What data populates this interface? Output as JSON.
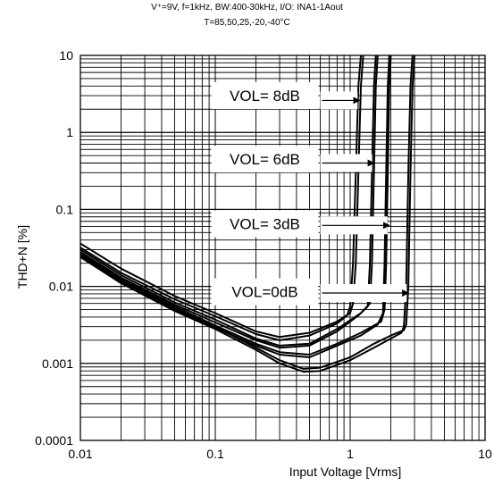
{
  "header": {
    "line1": "V⁺=9V, f=1kHz, BW:400-30kHz, I/O: INA1-1Aout",
    "line2": "T=85,50,25,-20,-40°C"
  },
  "chart_data": {
    "type": "line",
    "title": "V⁺=9V, f=1kHz, BW:400-30kHz, I/O: INA1-1Aout",
    "subtitle": "T=85,50,25,-20,-40°C",
    "xlabel": "Input Voltage [Vrms]",
    "ylabel": "THD+N [%]",
    "xscale": "log",
    "yscale": "log",
    "xlim": [
      0.01,
      10
    ],
    "ylim": [
      0.0001,
      10
    ],
    "grid": true,
    "x_tick_labels": [
      "0.01",
      "0.1",
      "1",
      "10"
    ],
    "y_tick_labels": [
      "0.0001",
      "0.001",
      "0.01",
      "0.1",
      "1",
      "10"
    ],
    "series": [
      {
        "group": 0,
        "values": [
          [
            0.01,
            0.036
          ],
          [
            0.02,
            0.017
          ],
          [
            0.05,
            0.0075
          ],
          [
            0.1,
            0.0045
          ],
          [
            0.2,
            0.0026
          ],
          [
            0.3,
            0.0022
          ],
          [
            0.5,
            0.0025
          ],
          [
            0.8,
            0.0035
          ],
          [
            1.0,
            0.0045
          ],
          [
            1.05,
            0.006
          ],
          [
            1.1,
            0.02
          ],
          [
            1.15,
            0.3
          ],
          [
            1.2,
            4.0
          ],
          [
            1.25,
            10.0
          ]
        ]
      },
      {
        "group": 0,
        "values": [
          [
            0.01,
            0.032
          ],
          [
            0.02,
            0.015
          ],
          [
            0.05,
            0.0068
          ],
          [
            0.1,
            0.0041
          ],
          [
            0.2,
            0.0024
          ],
          [
            0.3,
            0.002
          ],
          [
            0.5,
            0.0023
          ],
          [
            0.8,
            0.0033
          ],
          [
            0.95,
            0.0042
          ],
          [
            1.0,
            0.0055
          ],
          [
            1.05,
            0.02
          ],
          [
            1.1,
            0.3
          ],
          [
            1.15,
            4.0
          ],
          [
            1.2,
            10.0
          ]
        ]
      },
      {
        "group": 1,
        "values": [
          [
            0.01,
            0.03
          ],
          [
            0.02,
            0.014
          ],
          [
            0.05,
            0.0062
          ],
          [
            0.1,
            0.0037
          ],
          [
            0.2,
            0.0021
          ],
          [
            0.3,
            0.0017
          ],
          [
            0.5,
            0.0018
          ],
          [
            0.8,
            0.0028
          ],
          [
            1.2,
            0.0045
          ],
          [
            1.4,
            0.006
          ],
          [
            1.45,
            0.02
          ],
          [
            1.5,
            0.3
          ],
          [
            1.55,
            4.0
          ],
          [
            1.6,
            10.0
          ]
        ]
      },
      {
        "group": 1,
        "values": [
          [
            0.01,
            0.028
          ],
          [
            0.02,
            0.013
          ],
          [
            0.05,
            0.0058
          ],
          [
            0.1,
            0.0034
          ],
          [
            0.2,
            0.002
          ],
          [
            0.3,
            0.0016
          ],
          [
            0.5,
            0.0017
          ],
          [
            0.8,
            0.0026
          ],
          [
            1.15,
            0.0042
          ],
          [
            1.35,
            0.0055
          ],
          [
            1.4,
            0.02
          ],
          [
            1.45,
            0.3
          ],
          [
            1.5,
            4.0
          ],
          [
            1.55,
            10.0
          ]
        ]
      },
      {
        "group": 2,
        "values": [
          [
            0.01,
            0.027
          ],
          [
            0.02,
            0.0125
          ],
          [
            0.05,
            0.0055
          ],
          [
            0.1,
            0.0031
          ],
          [
            0.2,
            0.0018
          ],
          [
            0.3,
            0.0014
          ],
          [
            0.5,
            0.0013
          ],
          [
            0.8,
            0.0018
          ],
          [
            1.2,
            0.0025
          ],
          [
            1.7,
            0.0035
          ],
          [
            1.8,
            0.005
          ],
          [
            1.85,
            0.02
          ],
          [
            1.9,
            0.3
          ],
          [
            1.95,
            4.0
          ],
          [
            2.0,
            10.0
          ]
        ]
      },
      {
        "group": 2,
        "values": [
          [
            0.01,
            0.025
          ],
          [
            0.02,
            0.0115
          ],
          [
            0.05,
            0.005
          ],
          [
            0.1,
            0.0029
          ],
          [
            0.2,
            0.0017
          ],
          [
            0.3,
            0.0013
          ],
          [
            0.5,
            0.0012
          ],
          [
            0.8,
            0.0017
          ],
          [
            1.2,
            0.0023
          ],
          [
            1.6,
            0.0032
          ],
          [
            1.75,
            0.0045
          ],
          [
            1.8,
            0.02
          ],
          [
            1.85,
            0.3
          ],
          [
            1.9,
            4.0
          ],
          [
            1.95,
            10.0
          ]
        ]
      },
      {
        "group": 3,
        "values": [
          [
            0.01,
            0.026
          ],
          [
            0.02,
            0.012
          ],
          [
            0.05,
            0.0052
          ],
          [
            0.1,
            0.003
          ],
          [
            0.2,
            0.0016
          ],
          [
            0.3,
            0.0011
          ],
          [
            0.45,
            0.00085
          ],
          [
            0.6,
            0.00088
          ],
          [
            1.0,
            0.0012
          ],
          [
            1.5,
            0.0018
          ],
          [
            2.0,
            0.0023
          ],
          [
            2.5,
            0.0027
          ],
          [
            2.6,
            0.0032
          ],
          [
            2.7,
            0.01
          ],
          [
            2.8,
            0.3
          ],
          [
            2.9,
            4.0
          ],
          [
            3.0,
            10.0
          ]
        ]
      },
      {
        "group": 3,
        "values": [
          [
            0.01,
            0.024
          ],
          [
            0.02,
            0.011
          ],
          [
            0.05,
            0.0048
          ],
          [
            0.1,
            0.0028
          ],
          [
            0.2,
            0.0015
          ],
          [
            0.3,
            0.001
          ],
          [
            0.45,
            0.00078
          ],
          [
            0.6,
            0.0008
          ],
          [
            1.0,
            0.0011
          ],
          [
            1.5,
            0.0016
          ],
          [
            2.0,
            0.0021
          ],
          [
            2.4,
            0.0025
          ],
          [
            2.5,
            0.003
          ],
          [
            2.6,
            0.01
          ],
          [
            2.7,
            0.3
          ],
          [
            2.8,
            4.0
          ],
          [
            2.9,
            10.0
          ]
        ]
      }
    ],
    "annotations": [
      {
        "text": "VOL= 8dB",
        "box_center": [
          0.2,
          3.0
        ],
        "arrow_to": [
          1.17,
          2.6
        ]
      },
      {
        "text": "VOL= 6dB",
        "box_center": [
          0.2,
          0.45
        ],
        "arrow_to": [
          1.5,
          0.4
        ]
      },
      {
        "text": "VOL= 3dB",
        "box_center": [
          0.2,
          0.065
        ],
        "arrow_to": [
          1.95,
          0.062
        ]
      },
      {
        "text": "VOL=0dB",
        "box_center": [
          0.2,
          0.0085
        ],
        "arrow_to": [
          2.7,
          0.0082
        ]
      }
    ]
  }
}
